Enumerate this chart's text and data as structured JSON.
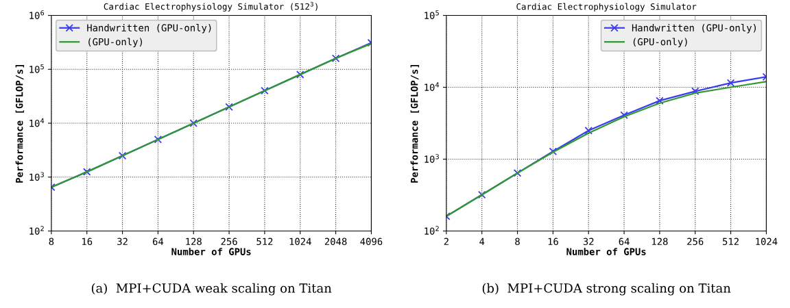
{
  "chart_data": [
    {
      "type": "line",
      "title": "Cardiac Electrophysiology Simulator (512$^{3}$)",
      "xlabel": "Number of GPUs",
      "ylabel": "Performance [GFLOP/s]",
      "log": "xy",
      "grid": true,
      "legend": "top left",
      "line_style": "solid",
      "x": [
        8,
        16,
        32,
        64,
        128,
        256,
        512,
        1024,
        2048,
        4096
      ],
      "series": [
        {
          "name": "Handwritten (GPU-only)",
          "color": "#3b3bf0",
          "marker": "cross",
          "values": [
            650,
            1250,
            2500,
            5000,
            10000,
            20000,
            40000,
            80000,
            160000,
            310000
          ]
        },
        {
          "name": "(GPU-only)",
          "color": "#2e9a2e",
          "marker": "none",
          "values": [
            650,
            1250,
            2500,
            5000,
            10000,
            20000,
            40000,
            80000,
            160000,
            300000
          ]
        }
      ],
      "xlim": [
        8,
        4096
      ],
      "xticks": [
        8,
        16,
        32,
        64,
        128,
        256,
        512,
        1024,
        2048,
        4096
      ],
      "ylim": [
        100,
        1000000
      ],
      "yticks": [
        {
          "value": 100,
          "label": "10$^{2}$"
        },
        {
          "value": 1000,
          "label": "10$^{3}$"
        },
        {
          "value": 10000,
          "label": "10$^{4}$"
        },
        {
          "value": 100000,
          "label": "10$^{5}$"
        },
        {
          "value": 1000000,
          "label": "10$^{6}$"
        }
      ],
      "annotations": [
        "(a)  MPI+CUDA weak scaling on Titan"
      ]
    },
    {
      "type": "line",
      "title": "Cardiac Electrophysiology Simulator",
      "xlabel": "Number of GPUs",
      "ylabel": "Performance [GFLOP/s]",
      "log": "xy",
      "grid": true,
      "legend": "top right",
      "line_style": "solid",
      "x": [
        2,
        4,
        8,
        16,
        32,
        64,
        128,
        256,
        512,
        1024
      ],
      "series": [
        {
          "name": "Handwritten (GPU-only)",
          "color": "#3b3bf0",
          "marker": "cross",
          "values": [
            160,
            320,
            640,
            1280,
            2500,
            4100,
            6500,
            8800,
            11500,
            14000
          ]
        },
        {
          "name": "(GPU-only)",
          "color": "#2e9a2e",
          "marker": "none",
          "values": [
            160,
            320,
            640,
            1250,
            2300,
            3900,
            6000,
            8300,
            10000,
            12000
          ]
        }
      ],
      "xlim": [
        2,
        1024
      ],
      "xticks": [
        2,
        4,
        8,
        16,
        32,
        64,
        128,
        256,
        512,
        1024
      ],
      "ylim": [
        100,
        100000
      ],
      "yticks": [
        {
          "value": 100,
          "label": "10$^{2}$"
        },
        {
          "value": 1000,
          "label": "10$^{3}$"
        },
        {
          "value": 10000,
          "label": "10$^{4}$"
        },
        {
          "value": 100000,
          "label": "10$^{5}$"
        }
      ],
      "annotations": [
        "(b)  MPI+CUDA strong scaling on Titan"
      ]
    }
  ]
}
